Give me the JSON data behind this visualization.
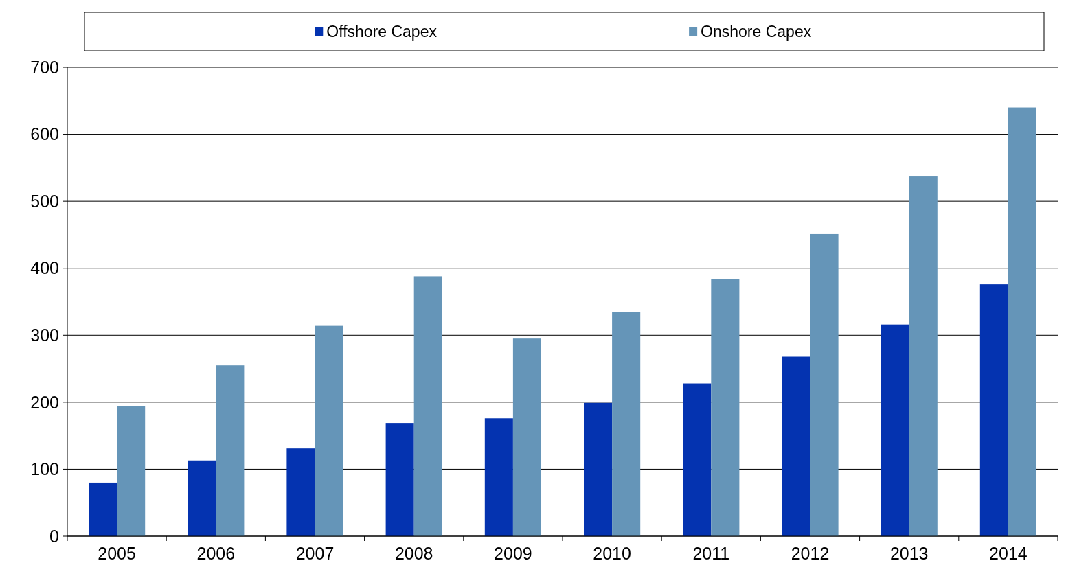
{
  "chart_data": {
    "type": "bar",
    "categories": [
      "2005",
      "2006",
      "2007",
      "2008",
      "2009",
      "2010",
      "2011",
      "2012",
      "2013",
      "2014"
    ],
    "series": [
      {
        "name": "Offshore Capex",
        "color": "#0433b0",
        "values": [
          80,
          113,
          131,
          169,
          176,
          199,
          228,
          268,
          316,
          376
        ]
      },
      {
        "name": "Onshore Capex",
        "color": "#6595b8",
        "values": [
          194,
          255,
          314,
          388,
          295,
          335,
          384,
          451,
          537,
          640
        ]
      }
    ],
    "ylim": [
      0,
      700
    ],
    "yticks": [
      0,
      100,
      200,
      300,
      400,
      500,
      600,
      700
    ],
    "grid": "y",
    "legend": "top"
  }
}
